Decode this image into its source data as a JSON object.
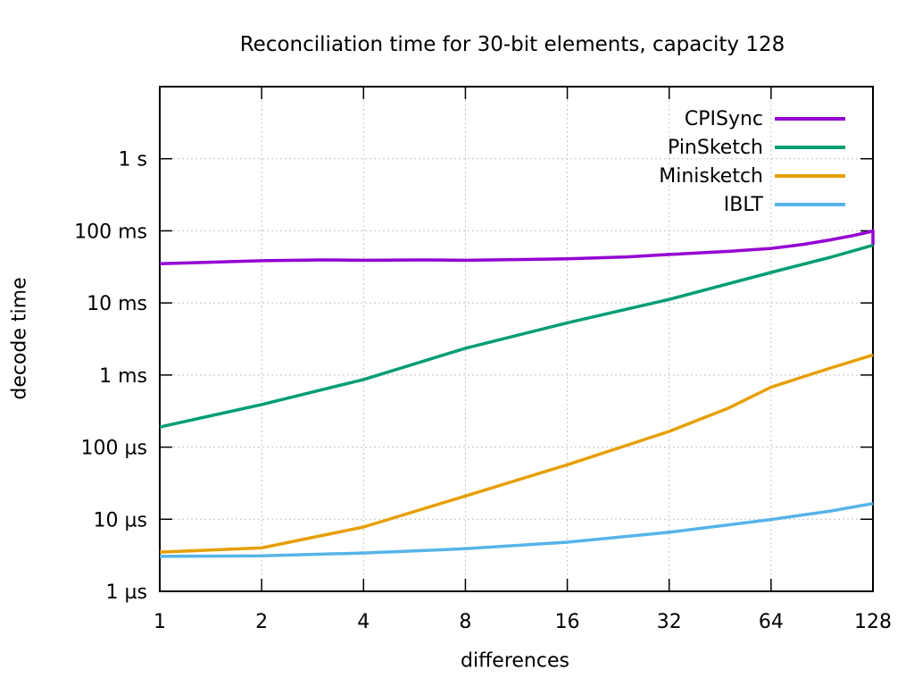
{
  "chart_data": {
    "type": "line",
    "title": "Reconciliation time for 30-bit elements, capacity 128",
    "xlabel": "differences",
    "ylabel": "decode time",
    "x_scale": "log2",
    "y_scale": "log10",
    "grid": true,
    "legend_position": "top-right-inside",
    "x_range": [
      1,
      128
    ],
    "y_range_us": [
      1,
      10000000
    ],
    "x_ticks": [
      1,
      2,
      4,
      8,
      16,
      32,
      64,
      128
    ],
    "y_ticks": [
      {
        "us": 1,
        "label": "1 µs"
      },
      {
        "us": 10,
        "label": "10 µs"
      },
      {
        "us": 100,
        "label": "100 µs"
      },
      {
        "us": 1000,
        "label": "1 ms"
      },
      {
        "us": 10000,
        "label": "10 ms"
      },
      {
        "us": 100000,
        "label": "100 ms"
      },
      {
        "us": 1000000,
        "label": "1 s"
      }
    ],
    "series": [
      {
        "name": "CPISync",
        "color": "#9400d3",
        "points_x_us": [
          [
            1,
            35000
          ],
          [
            2,
            38500
          ],
          [
            3,
            39500
          ],
          [
            4,
            39000
          ],
          [
            6,
            39500
          ],
          [
            8,
            39000
          ],
          [
            12,
            40000
          ],
          [
            16,
            41000
          ],
          [
            24,
            43500
          ],
          [
            32,
            47000
          ],
          [
            48,
            52000
          ],
          [
            64,
            57000
          ],
          [
            80,
            65000
          ],
          [
            96,
            75000
          ],
          [
            112,
            86000
          ],
          [
            124,
            96000
          ],
          [
            128,
            100000
          ],
          [
            128,
            64000
          ]
        ]
      },
      {
        "name": "PinSketch",
        "color": "#009e73",
        "points_x_us": [
          [
            1,
            190
          ],
          [
            2,
            390
          ],
          [
            4,
            865
          ],
          [
            8,
            2350
          ],
          [
            16,
            5300
          ],
          [
            32,
            11200
          ],
          [
            64,
            26500
          ],
          [
            96,
            43000
          ],
          [
            128,
            63000
          ]
        ]
      },
      {
        "name": "Minisketch",
        "color": "#e69f00",
        "points_x_us": [
          [
            1,
            3.5
          ],
          [
            2,
            4.0
          ],
          [
            4,
            7.8
          ],
          [
            8,
            21
          ],
          [
            16,
            57
          ],
          [
            32,
            165
          ],
          [
            48,
            350
          ],
          [
            64,
            680
          ],
          [
            96,
            1250
          ],
          [
            128,
            1900
          ]
        ]
      },
      {
        "name": "IBLT",
        "color": "#56b4e9",
        "points_x_us": [
          [
            1,
            3.05
          ],
          [
            2,
            3.1
          ],
          [
            4,
            3.4
          ],
          [
            8,
            3.9
          ],
          [
            16,
            4.8
          ],
          [
            32,
            6.6
          ],
          [
            64,
            9.9
          ],
          [
            96,
            13
          ],
          [
            128,
            16.5
          ]
        ]
      }
    ]
  }
}
